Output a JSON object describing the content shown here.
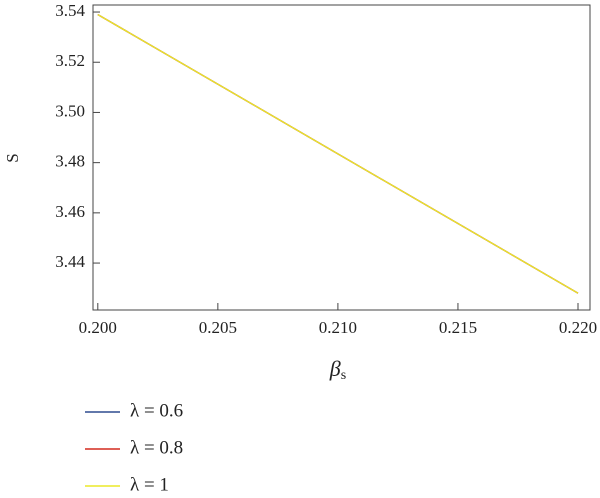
{
  "chart_data": {
    "type": "line",
    "xlabel": {
      "symbol": "β",
      "subscript": "s"
    },
    "ylabel": "S",
    "x": [
      0.2,
      0.22
    ],
    "series": [
      {
        "name": "λ = 0.6",
        "color": "#2e4b8f",
        "values": [
          3.539,
          3.428
        ]
      },
      {
        "name": "λ = 0.8",
        "color": "#d42a1e",
        "values": [
          3.539,
          3.428
        ]
      },
      {
        "name": "λ = 1",
        "color": "#ece828",
        "values": [
          3.539,
          3.428
        ]
      }
    ],
    "xlim": [
      0.1998,
      0.2205
    ],
    "ylim": [
      3.4213,
      3.5428
    ],
    "xticks": [
      {
        "value": 0.2,
        "label": "0.200"
      },
      {
        "value": 0.205,
        "label": "0.205"
      },
      {
        "value": 0.21,
        "label": "0.210"
      },
      {
        "value": 0.215,
        "label": "0.215"
      },
      {
        "value": 0.22,
        "label": "0.220"
      }
    ],
    "yticks": [
      3.44,
      3.46,
      3.48,
      {
        "value": 3.5,
        "label": "3.50"
      },
      3.52,
      3.54
    ]
  }
}
